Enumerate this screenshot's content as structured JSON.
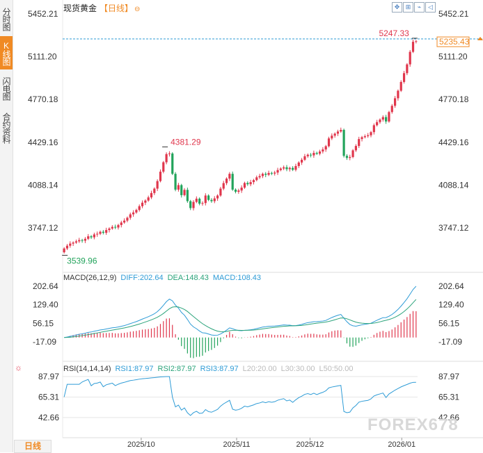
{
  "sidebar": {
    "tabs": [
      {
        "label": "分时图",
        "active": false
      },
      {
        "label": "K线图",
        "active": true
      },
      {
        "label": "闪电图",
        "active": false
      },
      {
        "label": "合约资料",
        "active": false
      }
    ]
  },
  "header": {
    "title": "现货黄金",
    "period_label": "【日线】",
    "mode_icon": "⊖",
    "tools": [
      {
        "icon": "move-icon",
        "glyph": "✥"
      },
      {
        "icon": "zoom-icon",
        "glyph": "⊞"
      },
      {
        "icon": "line-chart-icon",
        "glyph": "⌁"
      },
      {
        "icon": "back-icon",
        "glyph": "◁"
      }
    ]
  },
  "colors": {
    "up": "#e0364c",
    "down": "#22a35b",
    "accent": "#f08a24",
    "last_price": "#f08a24",
    "diff": "#2d9bd6",
    "dea": "#2aa37a",
    "rsi": "#2d9bd6",
    "grid": "#cccccc"
  },
  "bottom_bar": {
    "period_button": "日线"
  },
  "watermark": "FOREX678",
  "chart_data": [
    {
      "type": "candlestick",
      "title": "现货黄金【日线】",
      "y_ticks": [
        5452.21,
        5111.2,
        4770.18,
        4429.16,
        4088.14,
        3747.12
      ],
      "y_tick_labels": [
        "5452.21",
        "5111.20",
        "4770.18",
        "4429.16",
        "4088.14",
        "3747.12"
      ],
      "ylim": [
        3500,
        5500
      ],
      "x_labels": [
        "2025/10",
        "2025/11",
        "2025/12",
        "2026/01"
      ],
      "x_label_positions": [
        21,
        47,
        67,
        92
      ],
      "last_price": 5235.43,
      "last_price_label": "5235.43",
      "annotations": [
        {
          "label": "5247.33",
          "value": 5247.33,
          "index": 117,
          "kind": "high"
        },
        {
          "label": "4381.29",
          "value": 4381.29,
          "index": 34,
          "kind": "high"
        },
        {
          "label": "3539.96",
          "value": 3539.96,
          "index": 0,
          "kind": "low"
        }
      ],
      "close": [
        3583,
        3605,
        3622,
        3630,
        3640,
        3650,
        3645,
        3660,
        3680,
        3672,
        3695,
        3700,
        3716,
        3708,
        3730,
        3742,
        3755,
        3750,
        3770,
        3790,
        3805,
        3828,
        3855,
        3870,
        3890,
        3920,
        3948,
        3965,
        3990,
        4025,
        4060,
        4120,
        4195,
        4270,
        4335,
        4340,
        4178,
        4052,
        4088,
        4008,
        4050,
        3960,
        3905,
        3954,
        3980,
        3940,
        3945,
        4005,
        3970,
        3960,
        3982,
        4005,
        4060,
        4104,
        4140,
        4178,
        4052,
        4035,
        4045,
        4068,
        4105,
        4095,
        4112,
        4128,
        4150,
        4160,
        4178,
        4170,
        4185,
        4180,
        4188,
        4208,
        4220,
        4230,
        4215,
        4225,
        4210,
        4240,
        4268,
        4290,
        4318,
        4330,
        4325,
        4345,
        4338,
        4356,
        4372,
        4398,
        4460,
        4482,
        4498,
        4515,
        4528,
        4321,
        4305,
        4312,
        4365,
        4400,
        4455,
        4470,
        4478,
        4485,
        4510,
        4565,
        4590,
        4610,
        4630,
        4595,
        4670,
        4720,
        4780,
        4840,
        4910,
        4980,
        5050,
        5150,
        5230,
        5235
      ],
      "volumes_note": "OHLC derived from closes; indexes 0..117",
      "macd": {
        "title": "MACD(26,12,9)",
        "diff_label": "DIFF:202.64",
        "dea_label": "DEA:148.43",
        "macd_label": "MACD:108.43",
        "y_tick_labels": [
          "202.64",
          "129.40",
          "56.15",
          "-17.09"
        ],
        "y_ticks": [
          202.64,
          129.4,
          56.15,
          -17.09
        ],
        "ylim": [
          -60,
          220
        ]
      },
      "rsi": {
        "title": "RSI(14,14,14)",
        "rsi1_label": "RSI1:87.97",
        "rsi2_label": "RSI2:87.97",
        "rsi3_label": "RSI3:87.97",
        "levels": [
          "L20:20.00",
          "L30:30.00",
          "L50:50.00"
        ],
        "y_tick_labels": [
          "87.97",
          "65.31",
          "42.66"
        ],
        "y_ticks": [
          87.97,
          65.31,
          42.66
        ],
        "ylim": [
          30,
          95
        ]
      }
    }
  ]
}
